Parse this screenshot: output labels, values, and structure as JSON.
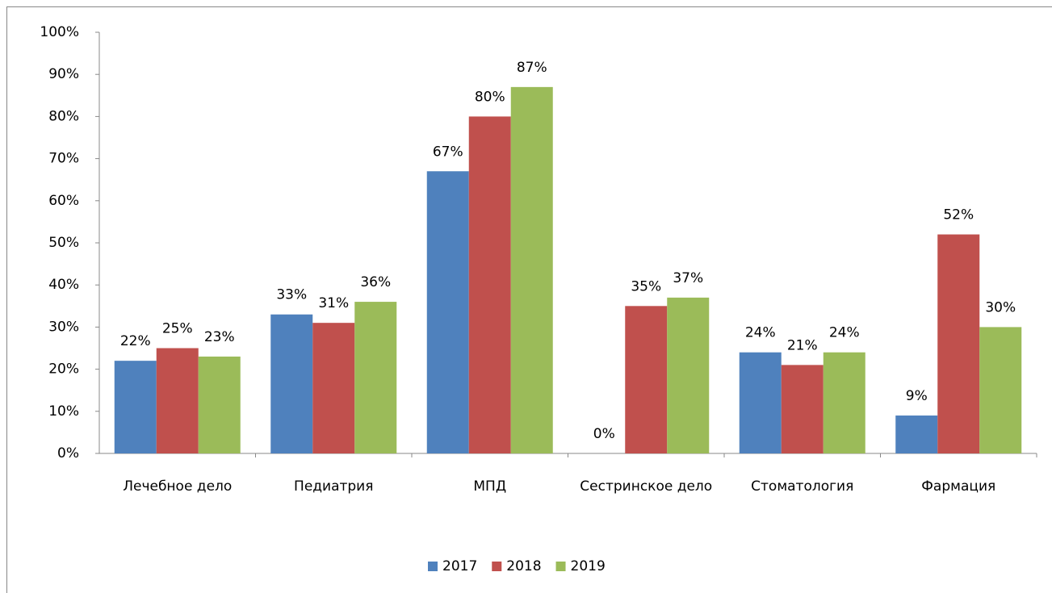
{
  "chart_data": {
    "type": "bar",
    "categories": [
      "Лечебное дело",
      "Педиатрия",
      "МПД",
      "Сестринское дело",
      "Стоматология",
      "Фармация"
    ],
    "series": [
      {
        "name": "2017",
        "color": "#4f81bd",
        "values": [
          22,
          33,
          67,
          0,
          24,
          9
        ],
        "value_labels": [
          "22%",
          "33%",
          "67%",
          "0%",
          "24%",
          "9%"
        ]
      },
      {
        "name": "2018",
        "color": "#c0504d",
        "values": [
          25,
          31,
          80,
          35,
          21,
          52
        ],
        "value_labels": [
          "25%",
          "31%",
          "80%",
          "35%",
          "21%",
          "52%"
        ]
      },
      {
        "name": "2019",
        "color": "#9bbb59",
        "values": [
          23,
          36,
          87,
          37,
          24,
          30
        ],
        "value_labels": [
          "23%",
          "36%",
          "87%",
          "37%",
          "24%",
          "30%"
        ]
      }
    ],
    "ylim": [
      0,
      100
    ],
    "yticks": [
      {
        "value": 0,
        "label": "0%"
      },
      {
        "value": 10,
        "label": "10%"
      },
      {
        "value": 20,
        "label": "20%"
      },
      {
        "value": 30,
        "label": "30%"
      },
      {
        "value": 40,
        "label": "40%"
      },
      {
        "value": 50,
        "label": "50%"
      },
      {
        "value": 60,
        "label": "60%"
      },
      {
        "value": 70,
        "label": "70%"
      },
      {
        "value": 80,
        "label": "80%"
      },
      {
        "value": 90,
        "label": "90%"
      },
      {
        "value": 100,
        "label": "100%"
      }
    ],
    "grid": false,
    "legend": "bottom"
  }
}
